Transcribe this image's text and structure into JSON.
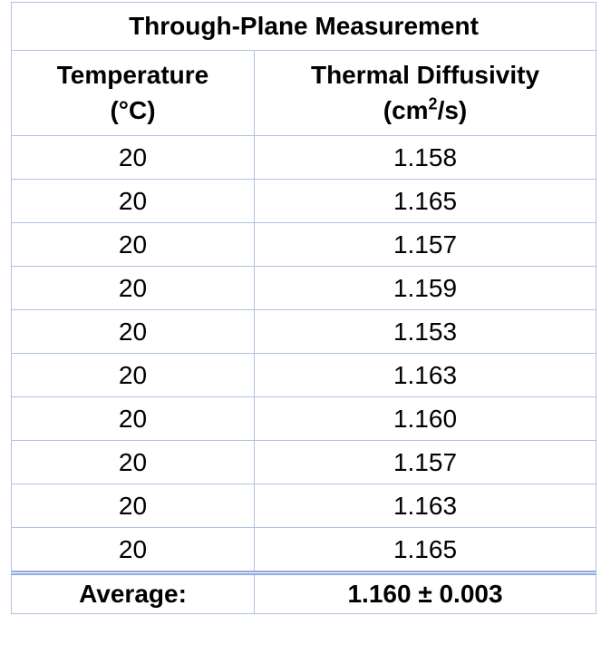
{
  "colors": {
    "thick_border": "#8faadc",
    "thin_border": "#aec3de",
    "text": "#000000",
    "background": "#ffffff"
  },
  "table": {
    "title": "Through-Plane Measurement",
    "col1_header_line1": "Temperature",
    "col1_header_line2": "(°C)",
    "col2_header_line1": "Thermal Diffusivity",
    "col2_header_unit_pre": "(cm",
    "col2_header_unit_sup": "2",
    "col2_header_unit_post": "/s)",
    "rows": [
      {
        "temperature": "20",
        "diffusivity": "1.158"
      },
      {
        "temperature": "20",
        "diffusivity": "1.165"
      },
      {
        "temperature": "20",
        "diffusivity": "1.157"
      },
      {
        "temperature": "20",
        "diffusivity": "1.159"
      },
      {
        "temperature": "20",
        "diffusivity": "1.153"
      },
      {
        "temperature": "20",
        "diffusivity": "1.163"
      },
      {
        "temperature": "20",
        "diffusivity": "1.160"
      },
      {
        "temperature": "20",
        "diffusivity": "1.157"
      },
      {
        "temperature": "20",
        "diffusivity": "1.163"
      },
      {
        "temperature": "20",
        "diffusivity": "1.165"
      }
    ],
    "average_label": "Average:",
    "average_value": "1.160 ± 0.003"
  },
  "chart_data": {
    "type": "table",
    "title": "Through-Plane Measurement",
    "columns": [
      "Temperature (°C)",
      "Thermal Diffusivity (cm²/s)"
    ],
    "rows": [
      [
        20,
        1.158
      ],
      [
        20,
        1.165
      ],
      [
        20,
        1.157
      ],
      [
        20,
        1.159
      ],
      [
        20,
        1.153
      ],
      [
        20,
        1.163
      ],
      [
        20,
        1.16
      ],
      [
        20,
        1.157
      ],
      [
        20,
        1.163
      ],
      [
        20,
        1.165
      ]
    ],
    "average": {
      "label": "Average:",
      "value": 1.16,
      "uncertainty": 0.003
    }
  }
}
